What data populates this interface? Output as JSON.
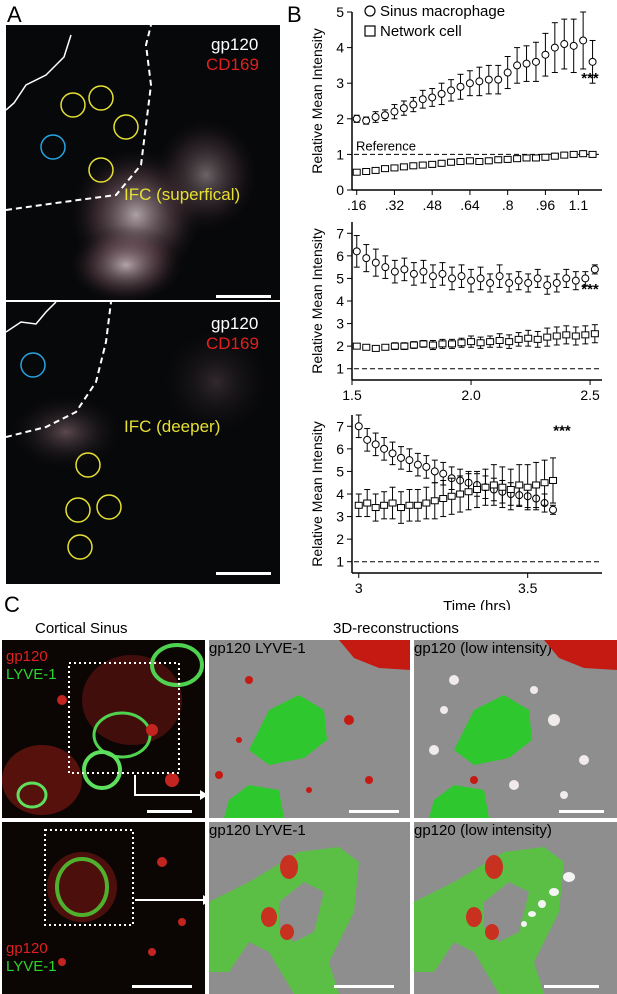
{
  "figure": {
    "panel_a_letter": "A",
    "panel_b_letter": "B",
    "panel_c_letter": "C",
    "panel_a_top": {
      "label_gp120": "gp120",
      "label_cd169": "CD169",
      "label_region": "IFC (superfical)"
    },
    "panel_a_bottom": {
      "label_gp120": "gp120",
      "label_cd169": "CD169",
      "label_region": "IFC (deeper)"
    },
    "panel_c": {
      "title_left": "Cortical Sinus",
      "title_right": "3D-reconstructions",
      "top_left_gp120": "gp120",
      "top_left_lyve": "LYVE-1",
      "top_mid_gp120": "gp120",
      "top_mid_lyve": "LYVE-1",
      "top_right_gp120": "gp120",
      "top_right_low": "(low intensity)",
      "bottom_left_gp120": "gp120",
      "bottom_left_lyve": "LYVE-1",
      "bottom_mid_gp120": "gp120",
      "bottom_mid_lyve": "LYVE-1",
      "bottom_right_gp120": "gp120",
      "bottom_right_low": "(low intensity)"
    }
  },
  "chart_data": [
    {
      "type": "scatter",
      "legend": [
        "Sinus macrophage",
        "Network cell"
      ],
      "legend_markers": [
        "circle",
        "square"
      ],
      "ylabel": "Relative Mean Intensity",
      "ylim": [
        0,
        5
      ],
      "yticks": [
        "0",
        "1",
        "2",
        "3",
        "4",
        "5"
      ],
      "xticks": [
        ".16",
        ".32",
        ".48",
        ".64",
        ".8",
        ".96",
        "1.1"
      ],
      "xtick_values": [
        0.16,
        0.32,
        0.48,
        0.64,
        0.8,
        0.96,
        1.1
      ],
      "xlim": [
        0.14,
        1.2
      ],
      "reference_label": "Reference",
      "reference_value": 1,
      "significance": "***",
      "series": [
        {
          "name": "Sinus macrophage",
          "x": [
            0.16,
            0.2,
            0.24,
            0.28,
            0.32,
            0.36,
            0.4,
            0.44,
            0.48,
            0.52,
            0.56,
            0.6,
            0.64,
            0.68,
            0.72,
            0.76,
            0.8,
            0.84,
            0.88,
            0.92,
            0.96,
            1.0,
            1.04,
            1.08,
            1.12,
            1.16
          ],
          "y": [
            2.0,
            1.95,
            2.05,
            2.1,
            2.2,
            2.3,
            2.4,
            2.55,
            2.6,
            2.7,
            2.8,
            2.9,
            3.0,
            3.05,
            3.1,
            3.1,
            3.3,
            3.5,
            3.55,
            3.6,
            3.8,
            4.0,
            4.1,
            4.05,
            4.2,
            3.6
          ],
          "err": [
            0.1,
            0.1,
            0.15,
            0.15,
            0.2,
            0.2,
            0.2,
            0.25,
            0.25,
            0.3,
            0.3,
            0.35,
            0.35,
            0.4,
            0.4,
            0.4,
            0.45,
            0.5,
            0.5,
            0.55,
            0.6,
            0.7,
            0.7,
            0.75,
            0.8,
            0.6
          ]
        },
        {
          "name": "Network cell",
          "x": [
            0.16,
            0.2,
            0.24,
            0.28,
            0.32,
            0.36,
            0.4,
            0.44,
            0.48,
            0.52,
            0.56,
            0.6,
            0.64,
            0.68,
            0.72,
            0.76,
            0.8,
            0.84,
            0.88,
            0.92,
            0.96,
            1.0,
            1.04,
            1.08,
            1.12,
            1.16
          ],
          "y": [
            0.5,
            0.52,
            0.55,
            0.6,
            0.62,
            0.65,
            0.68,
            0.7,
            0.72,
            0.75,
            0.78,
            0.8,
            0.82,
            0.8,
            0.82,
            0.85,
            0.86,
            0.88,
            0.9,
            0.9,
            0.92,
            0.95,
            0.98,
            1.0,
            1.02,
            1.0
          ],
          "err": [
            0.06,
            0.06,
            0.06,
            0.07,
            0.07,
            0.07,
            0.08,
            0.08,
            0.08,
            0.08,
            0.08,
            0.08,
            0.08,
            0.08,
            0.08,
            0.08,
            0.08,
            0.08,
            0.08,
            0.08,
            0.08,
            0.08,
            0.08,
            0.08,
            0.08,
            0.08
          ]
        }
      ]
    },
    {
      "type": "scatter",
      "ylabel": "Relative Mean Intensity",
      "ylim": [
        0.5,
        7.5
      ],
      "yticks": [
        "1",
        "2",
        "3",
        "4",
        "5",
        "6",
        "7"
      ],
      "xticks": [
        "1.5",
        "2.0",
        "2.5"
      ],
      "xtick_values": [
        1.5,
        2.0,
        2.5
      ],
      "xlim": [
        1.5,
        2.55
      ],
      "reference_value": 1,
      "significance": "***",
      "series": [
        {
          "name": "Sinus macrophage",
          "x": [
            1.52,
            1.56,
            1.6,
            1.64,
            1.68,
            1.72,
            1.76,
            1.8,
            1.84,
            1.88,
            1.92,
            1.96,
            2.0,
            2.04,
            2.08,
            2.12,
            2.16,
            2.2,
            2.24,
            2.28,
            2.32,
            2.36,
            2.4,
            2.44,
            2.48,
            2.52
          ],
          "y": [
            6.2,
            5.9,
            5.7,
            5.5,
            5.3,
            5.4,
            5.2,
            5.3,
            5.1,
            5.2,
            5.0,
            5.1,
            4.9,
            5.0,
            4.8,
            5.1,
            4.8,
            4.9,
            4.8,
            5.0,
            4.7,
            4.8,
            5.0,
            4.9,
            5.0,
            5.4
          ],
          "err": [
            0.7,
            0.6,
            0.6,
            0.5,
            0.5,
            0.5,
            0.5,
            0.5,
            0.5,
            0.5,
            0.5,
            0.5,
            0.5,
            0.5,
            0.4,
            0.5,
            0.4,
            0.4,
            0.4,
            0.4,
            0.4,
            0.4,
            0.4,
            0.4,
            0.3,
            0.2
          ]
        },
        {
          "name": "Network cell",
          "x": [
            1.52,
            1.56,
            1.6,
            1.64,
            1.68,
            1.72,
            1.76,
            1.8,
            1.84,
            1.88,
            1.92,
            1.96,
            2.0,
            2.04,
            2.08,
            2.12,
            2.16,
            2.2,
            2.24,
            2.28,
            2.32,
            2.36,
            2.4,
            2.44,
            2.48,
            2.52
          ],
          "y": [
            2.0,
            1.95,
            1.9,
            1.95,
            2.0,
            2.0,
            2.05,
            2.1,
            2.05,
            2.1,
            2.1,
            2.15,
            2.2,
            2.15,
            2.2,
            2.25,
            2.2,
            2.3,
            2.35,
            2.3,
            2.4,
            2.45,
            2.5,
            2.45,
            2.5,
            2.55
          ],
          "err": [
            0.1,
            0.1,
            0.1,
            0.1,
            0.15,
            0.15,
            0.15,
            0.15,
            0.2,
            0.2,
            0.2,
            0.2,
            0.25,
            0.25,
            0.25,
            0.3,
            0.3,
            0.3,
            0.35,
            0.35,
            0.4,
            0.4,
            0.4,
            0.4,
            0.4,
            0.4
          ]
        }
      ]
    },
    {
      "type": "scatter",
      "ylabel": "Relative Mean Intensity",
      "xlabel": "Time (hrs)",
      "ylim": [
        0.5,
        7.5
      ],
      "yticks": [
        "1",
        "2",
        "3",
        "4",
        "5",
        "6",
        "7"
      ],
      "xticks": [
        "3",
        "3.5"
      ],
      "xtick_values": [
        3.0,
        3.5
      ],
      "xlim": [
        2.98,
        3.72
      ],
      "reference_value": 1,
      "significance": "***",
      "series": [
        {
          "name": "Sinus macrophage",
          "x": [
            3.0,
            3.025,
            3.05,
            3.075,
            3.1,
            3.125,
            3.15,
            3.175,
            3.2,
            3.225,
            3.25,
            3.275,
            3.3,
            3.325,
            3.35,
            3.375,
            3.4,
            3.425,
            3.45,
            3.475,
            3.5,
            3.525,
            3.55,
            3.575
          ],
          "y": [
            7.0,
            6.4,
            6.2,
            6.0,
            5.8,
            5.6,
            5.5,
            5.3,
            5.2,
            5.0,
            4.9,
            4.7,
            4.6,
            4.5,
            4.4,
            4.3,
            4.2,
            4.1,
            4.0,
            3.95,
            3.9,
            3.8,
            3.6,
            3.3
          ],
          "err": [
            0.5,
            0.5,
            0.5,
            0.5,
            0.5,
            0.5,
            0.5,
            0.5,
            0.5,
            0.5,
            0.5,
            0.5,
            0.5,
            0.5,
            0.5,
            0.5,
            0.5,
            0.5,
            0.5,
            0.5,
            0.5,
            0.5,
            0.4,
            0.2
          ]
        },
        {
          "name": "Network cell",
          "x": [
            3.0,
            3.025,
            3.05,
            3.075,
            3.1,
            3.125,
            3.15,
            3.175,
            3.2,
            3.225,
            3.25,
            3.275,
            3.3,
            3.325,
            3.35,
            3.375,
            3.4,
            3.425,
            3.45,
            3.475,
            3.5,
            3.525,
            3.55,
            3.575
          ],
          "y": [
            3.5,
            3.6,
            3.4,
            3.5,
            3.6,
            3.4,
            3.5,
            3.5,
            3.6,
            3.7,
            3.8,
            3.9,
            4.0,
            4.1,
            4.2,
            4.3,
            4.4,
            4.3,
            4.2,
            4.4,
            4.3,
            4.4,
            4.5,
            4.6
          ],
          "err": [
            0.5,
            0.6,
            0.6,
            0.6,
            0.7,
            0.7,
            0.7,
            0.7,
            0.7,
            0.8,
            0.8,
            0.8,
            0.8,
            0.8,
            0.8,
            0.8,
            0.9,
            0.9,
            0.9,
            0.9,
            1.0,
            1.0,
            1.0,
            1.0
          ]
        }
      ]
    }
  ]
}
